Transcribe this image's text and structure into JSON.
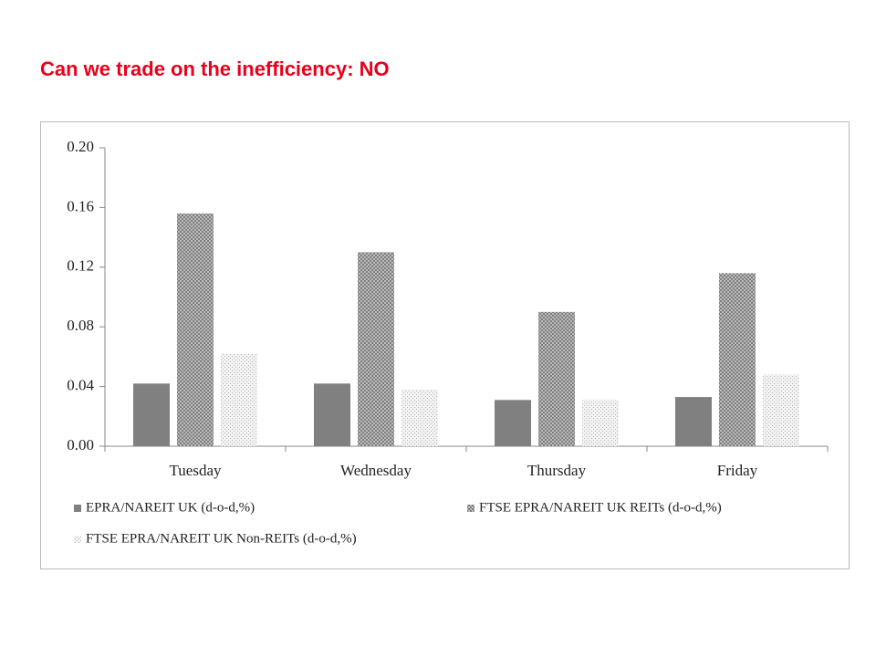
{
  "title": "Can we trade on the inefficiency: NO",
  "chart_data": {
    "type": "bar",
    "categories": [
      "Tuesday",
      "Wednesday",
      "Thursday",
      "Friday"
    ],
    "series": [
      {
        "name": "EPRA/NAREIT UK (d-o-d,%)",
        "color": "#808080",
        "values": [
          0.042,
          0.042,
          0.031,
          0.033
        ]
      },
      {
        "name": "FTSE EPRA/NAREIT UK REITs (d-o-d,%)",
        "color": "#7a7a7a",
        "values": [
          0.156,
          0.13,
          0.09,
          0.116
        ]
      },
      {
        "name": "FTSE EPRA/NAREIT UK Non-REITs (d-o-d,%)",
        "color": "#b8b8b8",
        "values": [
          0.062,
          0.038,
          0.031,
          0.048
        ]
      }
    ],
    "ylim": [
      0,
      0.2
    ],
    "yticks": [
      {
        "value": 0,
        "label": "0.00"
      },
      0.04,
      0.08,
      0.12,
      0.16,
      {
        "value": 0.2,
        "label": "0.20"
      }
    ]
  }
}
